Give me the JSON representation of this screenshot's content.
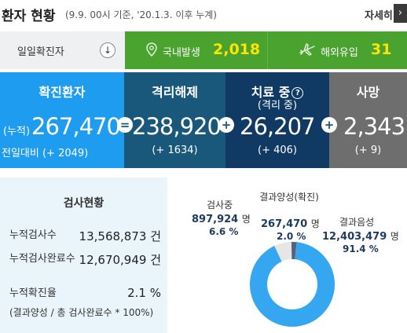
{
  "header": {
    "title": "환자 현황",
    "subtitle": "(9.9. 00시 기준, '20.1.3. 이후 누계)",
    "more_label": "자세히",
    "more_arrow": "›"
  },
  "daily": {
    "label": "일일확진자",
    "arrow": "↓",
    "domestic_label": "국내발생",
    "domestic_value": "2,018",
    "overseas_label": "해외유입",
    "overseas_value": "31"
  },
  "stats": {
    "confirmed": {
      "title": "확진환자",
      "cumulative_label": "(누적)",
      "value": "267,470",
      "change": "전일대비 (+ 2049)"
    },
    "released": {
      "title": "격리해제",
      "value": "238,920",
      "change": "(+ 1634)"
    },
    "treatment": {
      "title": "치료 중",
      "subtitle": "(격리 중)",
      "help": "?",
      "value": "26,207",
      "change": "(+ 406)"
    },
    "deaths": {
      "title": "사망",
      "value": "2,343",
      "change": "(+ 9)"
    },
    "op_equals": "=",
    "op_plus": "+"
  },
  "testing": {
    "title": "검사현황",
    "rows": [
      {
        "label": "누적검사수",
        "value": "13,568,873 건"
      },
      {
        "label": "누적검사완료수",
        "value": "12,670,949 건"
      },
      {
        "label": "누적확진율",
        "value": "2.1 %"
      }
    ],
    "note": "(결과양성 / 총 검사완료수 * 100%)"
  },
  "chart_data": {
    "type": "pie",
    "categories": [
      "검사중",
      "결과양성(확진)",
      "결과음성"
    ],
    "values": [
      897924,
      267470,
      12403479
    ],
    "percents": [
      "6.6 %",
      "2.0 %",
      "91.4 %"
    ],
    "unit": "명",
    "colors": [
      "#e6e6e6",
      "#56627a",
      "#35a7f0"
    ]
  },
  "donut_labels": {
    "testing_label": "검사중",
    "testing_value": "897,924",
    "positive_label": "결과양성(확진)",
    "positive_value": "267,470",
    "negative_label": "결과음성",
    "negative_value": "12,403,479",
    "unit": "명"
  },
  "icons": {
    "location": "location-pin-icon",
    "plane": "airplane-icon",
    "help": "help-circle-icon"
  }
}
